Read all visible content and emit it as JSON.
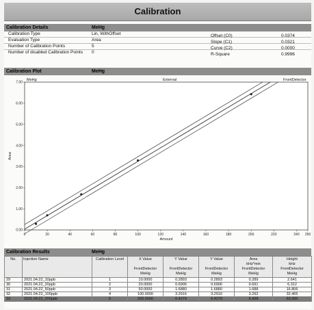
{
  "title": "Calibration",
  "details": {
    "header": "Calibration Details",
    "compound": "MeHg",
    "left": [
      {
        "label": "Calibration Type",
        "value": "Lin, WithOffset"
      },
      {
        "label": "Evaluation Type",
        "value": "Area"
      },
      {
        "label": "Number of Calibration Points",
        "value": "5"
      },
      {
        "label": "Number of disabled Calibration Points",
        "value": "0"
      }
    ],
    "right": [
      {
        "label": "Offset (C0)",
        "value": "0.0374"
      },
      {
        "label": "Slope (C1)",
        "value": "0.0321"
      },
      {
        "label": "Curve (C2)",
        "value": "0.0000"
      },
      {
        "label": "R-Square",
        "value": "0.9996"
      }
    ]
  },
  "plot": {
    "header": "Calibration Plot",
    "compound": "MeHg",
    "series_tag": "MeHg",
    "external_label": "External",
    "detector_label": "FrontDetector"
  },
  "chart_data": {
    "type": "scatter",
    "xlabel": "Amount",
    "ylabel": "Area",
    "xlim": [
      0,
      250
    ],
    "ylim": [
      0,
      7.0
    ],
    "xticks": [
      "0",
      "20",
      "40",
      "60",
      "80",
      "100",
      "120",
      "140",
      "160",
      "180",
      "200",
      "220",
      "240",
      "250"
    ],
    "yticks": [
      "0.00",
      "1.00",
      "2.00",
      "3.00",
      "4.00",
      "5.00",
      "6.00",
      "7.00"
    ],
    "points": [
      {
        "x": 10,
        "y": 0.289
      },
      {
        "x": 20,
        "y": 0.691
      },
      {
        "x": 50,
        "y": 1.688
      },
      {
        "x": 100,
        "y": 3.292
      },
      {
        "x": 200,
        "y": 6.428
      }
    ],
    "fit": {
      "c0": 0.0374,
      "c1": 0.0321
    }
  },
  "results": {
    "header": "Calibration Results",
    "compound": "MeHg",
    "columns": [
      "No.",
      "Injection Name",
      "Calibration Level",
      "X Value\n\nFrontDetector\nMeHg",
      "Y Value\n\nFrontDetector\nMeHg",
      "Y Value\n\nFrontDetector\nMeHg",
      "Area\nkHz*min\nFrontDetector\nMeHg",
      "Height\nkHz\nFrontDetector\nMeHg"
    ],
    "rows": [
      [
        "29",
        "2021.04.22_10ppb",
        "1",
        "10.0000",
        "0.2893",
        "0.2893",
        "0.289",
        "2.641"
      ],
      [
        "30",
        "2021.04.22_20ppb",
        "2",
        "20.0000",
        "0.6906",
        "0.6906",
        "0.691",
        "6.312"
      ],
      [
        "31",
        "2021.04.22_50ppb",
        "3",
        "50.0000",
        "1.6880",
        "1.6880",
        "1.688",
        "16.806"
      ],
      [
        "32",
        "2021.04.22_100ppb",
        "4",
        "100.0000",
        "3.2916",
        "3.2916",
        "3.292",
        "32.465"
      ],
      [
        "33",
        "2021.04.22_200ppb",
        "5",
        "200.0000",
        "6.4279",
        "6.4279",
        "6.428",
        "63.995"
      ]
    ]
  }
}
